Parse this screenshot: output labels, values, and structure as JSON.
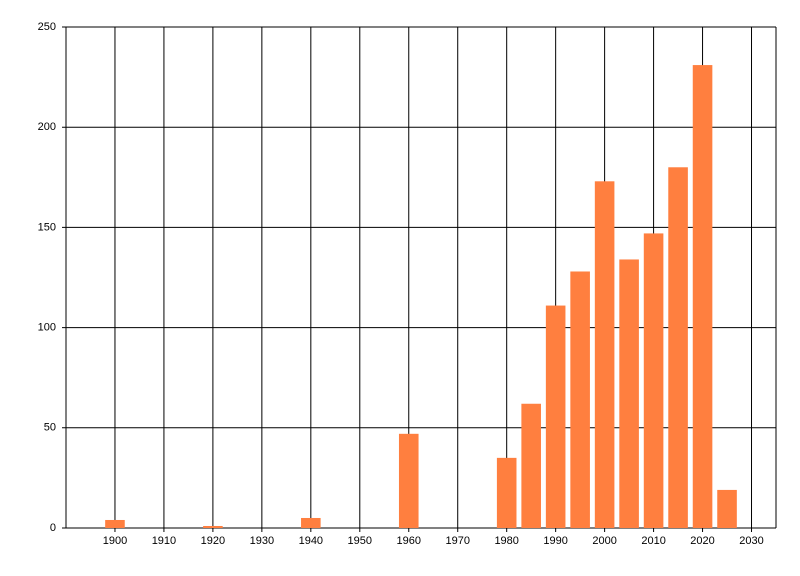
{
  "chart_data": {
    "type": "bar",
    "x": [
      1900,
      1920,
      1940,
      1960,
      1980,
      1985,
      1990,
      1995,
      2000,
      2005,
      2010,
      2015,
      2020,
      2025
    ],
    "values": [
      4,
      1,
      5,
      47,
      35,
      62,
      111,
      128,
      173,
      134,
      147,
      180,
      231,
      19
    ],
    "color": "#ff7f3f",
    "xlim": [
      1890,
      2035
    ],
    "xticks": [
      1900,
      1910,
      1920,
      1930,
      1940,
      1950,
      1960,
      1970,
      1980,
      1990,
      2000,
      2010,
      2020,
      2030
    ],
    "ylim": [
      0,
      250
    ],
    "yticks": [
      0,
      50,
      100,
      150,
      200,
      250
    ],
    "grid": true
  }
}
